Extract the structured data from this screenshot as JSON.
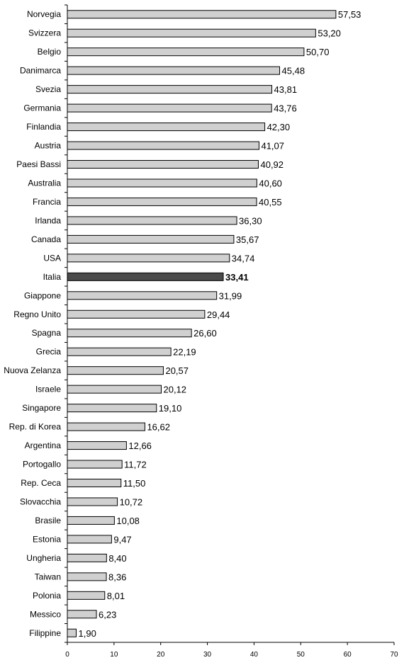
{
  "chart_data": {
    "type": "bar",
    "orientation": "horizontal",
    "categories": [
      "Norvegia",
      "Svizzera",
      "Belgio",
      "Danimarca",
      "Svezia",
      "Germania",
      "Finlandia",
      "Austria",
      "Paesi Bassi",
      "Australia",
      "Francia",
      "Irlanda",
      "Canada",
      "USA",
      "Italia",
      "Giappone",
      "Regno Unito",
      "Spagna",
      "Grecia",
      "Nuova Zelanza",
      "Israele",
      "Singapore",
      "Rep. di Korea",
      "Argentina",
      "Portogallo",
      "Rep. Ceca",
      "Slovacchia",
      "Brasile",
      "Estonia",
      "Ungheria",
      "Taiwan",
      "Polonia",
      "Messico",
      "Filippine"
    ],
    "values": [
      57.53,
      53.2,
      50.7,
      45.48,
      43.81,
      43.76,
      42.3,
      41.07,
      40.92,
      40.6,
      40.55,
      36.3,
      35.67,
      34.74,
      33.41,
      31.99,
      29.44,
      26.6,
      22.19,
      20.57,
      20.12,
      19.1,
      16.62,
      12.66,
      11.72,
      11.5,
      10.72,
      10.08,
      9.47,
      8.4,
      8.36,
      8.01,
      6.23,
      1.9
    ],
    "value_labels": [
      "57,53",
      "53,20",
      "50,70",
      "45,48",
      "43,81",
      "43,76",
      "42,30",
      "41,07",
      "40,92",
      "40,60",
      "40,55",
      "36,30",
      "35,67",
      "34,74",
      "33,41",
      "31,99",
      "29,44",
      "26,60",
      "22,19",
      "20,57",
      "20,12",
      "19,10",
      "16,62",
      "12,66",
      "11,72",
      "11,50",
      "10,72",
      "10,08",
      "9,47",
      "8,40",
      "8,36",
      "8,01",
      "6,23",
      "1,90"
    ],
    "highlight_category": "Italia",
    "xlim": [
      0,
      70
    ],
    "xticks": [
      0,
      10,
      20,
      30,
      40,
      50,
      60,
      70
    ],
    "xtick_labels": [
      "0",
      "10",
      "20",
      "30",
      "40",
      "50",
      "60",
      "70"
    ],
    "grid": false,
    "legend": "none",
    "colors": {
      "bar": "#d0d0d0",
      "bar_highlight": "#4a4a4a",
      "outline": "#000000"
    },
    "title": "",
    "xlabel": "",
    "ylabel": ""
  }
}
